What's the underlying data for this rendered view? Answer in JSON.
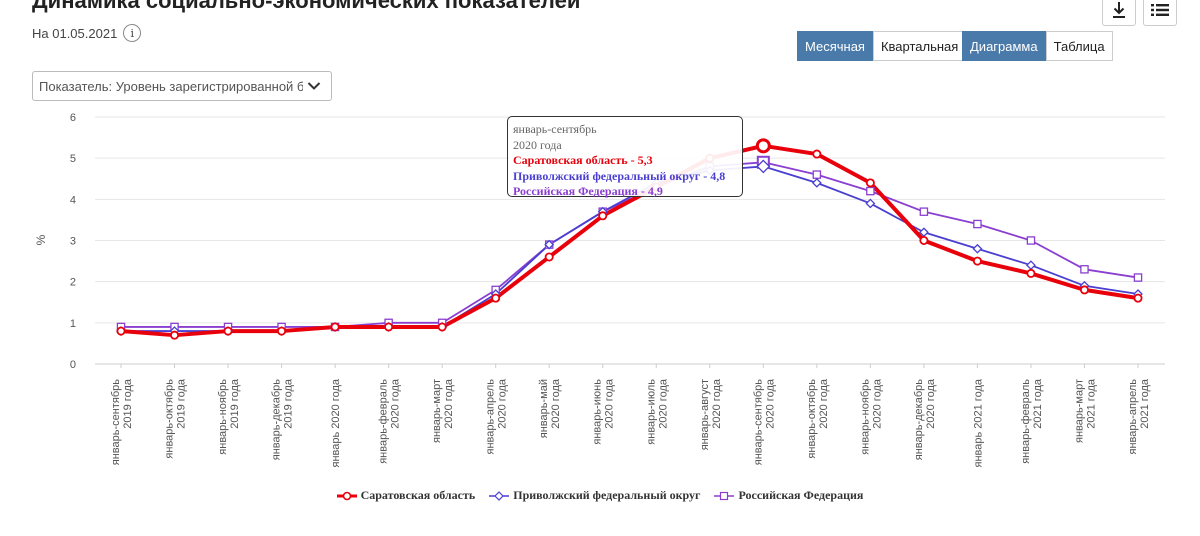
{
  "header": {
    "title": "Динамика социально-экономических показателей",
    "date": "На 01.05.2021",
    "info_glyph": "i"
  },
  "toolbar": {
    "period_buttons": [
      {
        "label": "Месячная",
        "active": true
      },
      {
        "label": "Квартальная",
        "active": false
      }
    ],
    "view_buttons": [
      {
        "label": "Диаграмма",
        "active": true
      },
      {
        "label": "Таблица",
        "active": false
      }
    ],
    "icons": [
      "download-icon",
      "list-icon"
    ]
  },
  "selector": {
    "value": "Показатель: Уровень зарегистрированной бе"
  },
  "tooltip": {
    "period": "январь-сентябрь",
    "year": "2020 года",
    "rows": [
      "Саратовская область - 5,3",
      "Приволжский федеральный округ - 4,8",
      "Российская Федерация - 4,9"
    ]
  },
  "chart_data": {
    "type": "line",
    "ylabel": "%",
    "ylim": [
      0,
      6
    ],
    "yticks": [
      0,
      1,
      2,
      3,
      4,
      5,
      6
    ],
    "grid": true,
    "legend_position": "bottom",
    "categories": [
      [
        "январь-сентябрь",
        "2019 года"
      ],
      [
        "январь-октябрь",
        "2019 года"
      ],
      [
        "январь-ноябрь",
        "2019 года"
      ],
      [
        "январь-декабрь",
        "2019 года"
      ],
      [
        "январь 2020 года"
      ],
      [
        "январь-февраль",
        "2020 года"
      ],
      [
        "январь-март",
        "2020 года"
      ],
      [
        "январь-апрель",
        "2020 года"
      ],
      [
        "январь-май",
        "2020 года"
      ],
      [
        "январь-июнь",
        "2020 года"
      ],
      [
        "январь-июль",
        "2020 года"
      ],
      [
        "январь-август",
        "2020 года"
      ],
      [
        "январь-сентябрь",
        "2020 года"
      ],
      [
        "январь-октябрь",
        "2020 года"
      ],
      [
        "январь-ноябрь",
        "2020 года"
      ],
      [
        "январь-декабрь",
        "2020 года"
      ],
      [
        "январь 2021 года"
      ],
      [
        "январь-февраль",
        "2021 года"
      ],
      [
        "январь-март",
        "2021 года"
      ],
      [
        "январь-апрель",
        "2021 года"
      ]
    ],
    "series": [
      {
        "name": "Саратовская область",
        "color": "#e8000b",
        "marker": "circle",
        "values": [
          0.8,
          0.7,
          0.8,
          0.8,
          0.9,
          0.9,
          0.9,
          1.6,
          2.6,
          3.6,
          4.3,
          5.0,
          5.3,
          5.1,
          4.4,
          3.0,
          2.5,
          2.2,
          1.8,
          1.6
        ]
      },
      {
        "name": "Приволжский федеральный округ",
        "color": "#4a3fd0",
        "marker": "diamond",
        "values": [
          0.8,
          0.8,
          0.8,
          0.8,
          0.9,
          0.9,
          0.9,
          1.7,
          2.9,
          3.7,
          4.4,
          4.7,
          4.8,
          4.4,
          3.9,
          3.2,
          2.8,
          2.4,
          1.9,
          1.7
        ]
      },
      {
        "name": "Российская Федерация",
        "color": "#8a3fd1",
        "marker": "square",
        "values": [
          0.9,
          0.9,
          0.9,
          0.9,
          0.9,
          1.0,
          1.0,
          1.8,
          2.9,
          3.7,
          4.3,
          4.8,
          4.9,
          4.6,
          4.2,
          3.7,
          3.4,
          3.0,
          2.3,
          2.1
        ]
      }
    ]
  }
}
